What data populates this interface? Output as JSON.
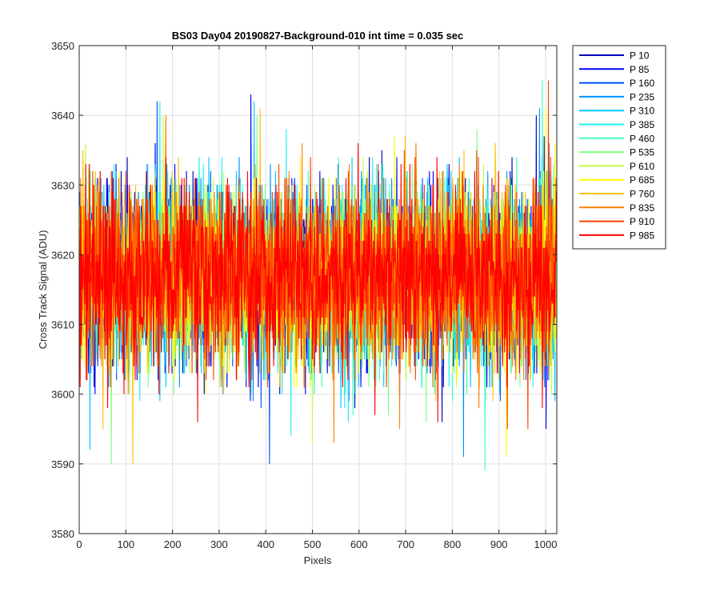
{
  "chart_data": {
    "type": "line",
    "title": "BS03 Day04 20190827-Background-010 int time = 0.035 sec",
    "xlabel": "Pixels",
    "ylabel": "Cross Track Signal (ADU)",
    "xlim": [
      0,
      1024
    ],
    "ylim": [
      3580,
      3650
    ],
    "xticks": [
      0,
      100,
      200,
      300,
      400,
      500,
      600,
      700,
      800,
      900,
      1000
    ],
    "yticks": [
      3580,
      3590,
      3600,
      3610,
      3620,
      3630,
      3640,
      3650
    ],
    "grid": true,
    "legend_position": "outside-top-right",
    "x_count": 1024,
    "mean": 3617,
    "noise_std": 6.2,
    "series": [
      {
        "name": "P 10",
        "color": "#0000b8",
        "seed": 11,
        "max": 3640,
        "min": 3596
      },
      {
        "name": "P 85",
        "color": "#0000ff",
        "seed": 23,
        "max": 3643,
        "min": 3595
      },
      {
        "name": "P 160",
        "color": "#0050ff",
        "seed": 37,
        "max": 3642,
        "min": 3590
      },
      {
        "name": "P 235",
        "color": "#0090ff",
        "seed": 41,
        "max": 3641,
        "min": 3591
      },
      {
        "name": "P 310",
        "color": "#00c8ff",
        "seed": 53,
        "max": 3642,
        "min": 3592
      },
      {
        "name": "P 385",
        "color": "#20f0f0",
        "seed": 67,
        "max": 3642,
        "min": 3594
      },
      {
        "name": "P 460",
        "color": "#40ffc0",
        "seed": 71,
        "max": 3645,
        "min": 3589
      },
      {
        "name": "P 535",
        "color": "#80ff80",
        "seed": 83,
        "max": 3640,
        "min": 3590
      },
      {
        "name": "P 610",
        "color": "#c0ff40",
        "seed": 97,
        "max": 3640,
        "min": 3593
      },
      {
        "name": "P 685",
        "color": "#ffff00",
        "seed": 101,
        "max": 3641,
        "min": 3591
      },
      {
        "name": "P 760",
        "color": "#ffc000",
        "seed": 113,
        "max": 3641,
        "min": 3590
      },
      {
        "name": "P 835",
        "color": "#ff8000",
        "seed": 127,
        "max": 3640,
        "min": 3593
      },
      {
        "name": "P 910",
        "color": "#ff4000",
        "seed": 131,
        "max": 3645,
        "min": 3595
      },
      {
        "name": "P 985",
        "color": "#ff0000",
        "seed": 139,
        "max": 3636,
        "min": 3596
      }
    ]
  }
}
